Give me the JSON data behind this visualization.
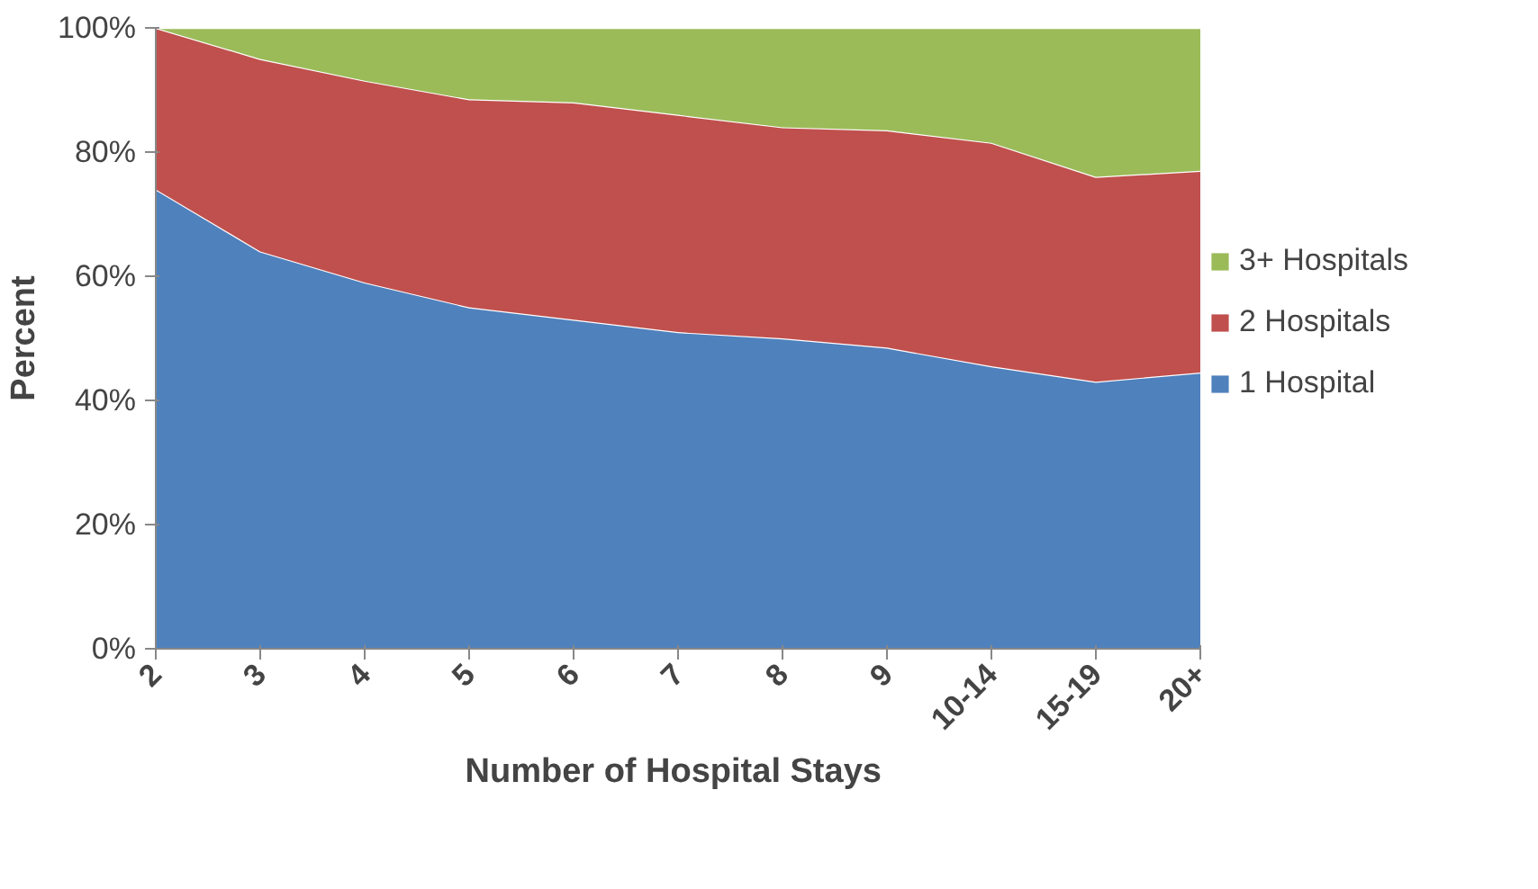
{
  "chart_data": {
    "type": "area",
    "stacked": true,
    "xlabel": "Number of  Hospital Stays",
    "ylabel": "Percent",
    "categories": [
      "2",
      "3",
      "4",
      "5",
      "6",
      "7",
      "8",
      "9",
      "10-14",
      "15-19",
      "20+"
    ],
    "series": [
      {
        "name": "1 Hospital",
        "color": "#4f81bd",
        "values": [
          74,
          64,
          59,
          55,
          53,
          51,
          50,
          48.5,
          45.5,
          43,
          44.5
        ]
      },
      {
        "name": "2 Hospitals",
        "color": "#c0504d",
        "values": [
          26,
          31,
          32.5,
          33.5,
          35,
          35,
          34,
          35,
          36,
          33,
          32.5
        ]
      },
      {
        "name": "3+ Hospitals",
        "color": "#9bbb59",
        "values": [
          0,
          5,
          8.5,
          11.5,
          12,
          14,
          16,
          16.5,
          18.5,
          24,
          23
        ]
      }
    ],
    "ylim": [
      0,
      100
    ],
    "yticks": [
      {
        "value": 0,
        "label": "0%"
      },
      {
        "value": 20,
        "label": "20%"
      },
      {
        "value": 40,
        "label": "40%"
      },
      {
        "value": 60,
        "label": "60%"
      },
      {
        "value": 80,
        "label": "80%"
      },
      {
        "value": 100,
        "label": "100%"
      }
    ],
    "legend": "right"
  }
}
